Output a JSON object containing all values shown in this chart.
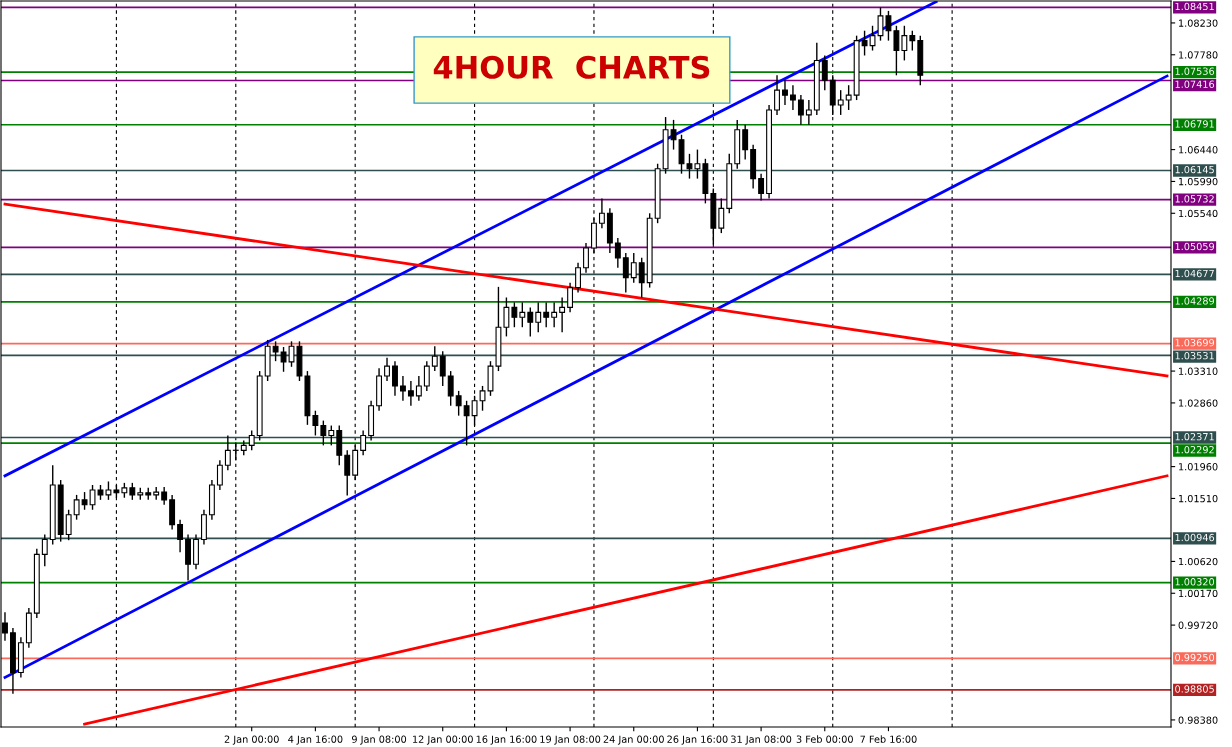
{
  "chart_data": {
    "type": "candlestick",
    "title": "4HOUR  CHARTS",
    "categories": [
      null,
      null,
      null,
      null,
      null,
      null,
      null,
      null,
      null,
      null,
      null,
      null,
      null,
      null,
      null,
      null,
      null,
      null,
      null,
      null,
      null,
      null,
      null,
      null,
      null,
      null,
      null,
      null,
      null,
      null,
      null,
      "2 Jan 00:00",
      null,
      null,
      null,
      null,
      null,
      null,
      null,
      "4 Jan 16:00",
      null,
      null,
      null,
      null,
      null,
      null,
      null,
      "9 Jan 08:00",
      null,
      null,
      null,
      null,
      null,
      null,
      null,
      "12 Jan 00:00",
      null,
      null,
      null,
      null,
      null,
      null,
      null,
      "16 Jan 16:00",
      null,
      null,
      null,
      null,
      null,
      null,
      null,
      "19 Jan 08:00",
      null,
      null,
      null,
      null,
      null,
      null,
      null,
      "24 Jan 00:00",
      null,
      null,
      null,
      null,
      null,
      null,
      null,
      "26 Jan 16:00",
      null,
      null,
      null,
      null,
      null,
      null,
      null,
      "31 Jan 08:00",
      null,
      null,
      null,
      null,
      null,
      null,
      null,
      "3 Feb 00:00",
      null,
      null,
      null,
      null,
      null,
      null,
      null,
      "7 Feb 16:00",
      null,
      null,
      null,
      null,
      null,
      null,
      null,
      null,
      null,
      null,
      null,
      null,
      null,
      null,
      null,
      null,
      null,
      null,
      null,
      null,
      null,
      null,
      null,
      null,
      null,
      null,
      null,
      null,
      null,
      null,
      null,
      null,
      null,
      null,
      null
    ],
    "ohlc": [
      [
        0.9975,
        0.999,
        0.995,
        0.9961
      ],
      [
        0.9961,
        0.9968,
        0.9875,
        0.9905
      ],
      [
        0.9905,
        0.9955,
        0.9898,
        0.9947
      ],
      [
        0.9947,
        0.9996,
        0.994,
        0.9989
      ],
      [
        0.9989,
        1.008,
        0.9982,
        1.0072
      ],
      [
        1.0072,
        1.01,
        1.0055,
        1.0093
      ],
      [
        1.0093,
        1.0198,
        1.0086,
        1.017
      ],
      [
        1.017,
        1.0177,
        1.009,
        1.01
      ],
      [
        1.01,
        1.0135,
        1.0092,
        1.0128
      ],
      [
        1.0128,
        1.0156,
        1.0121,
        1.0149
      ],
      [
        1.0149,
        1.016,
        1.0135,
        1.0142
      ],
      [
        1.0142,
        1.017,
        1.0135,
        1.0163
      ],
      [
        1.0163,
        1.017,
        1.0149,
        1.0156
      ],
      [
        1.0156,
        1.0175,
        1.0149,
        1.0163
      ],
      [
        1.0163,
        1.017,
        1.0152,
        1.0159
      ],
      [
        1.0159,
        1.0173,
        1.0152,
        1.0166
      ],
      [
        1.0166,
        1.0173,
        1.0149,
        1.0156
      ],
      [
        1.0156,
        1.0166,
        1.0149,
        1.0159
      ],
      [
        1.0159,
        1.0166,
        1.0149,
        1.0156
      ],
      [
        1.0156,
        1.0167,
        1.0149,
        1.016
      ],
      [
        1.016,
        1.0167,
        1.0142,
        1.0149
      ],
      [
        1.0149,
        1.0156,
        1.0107,
        1.0114
      ],
      [
        1.0114,
        1.0121,
        1.0075,
        1.0093
      ],
      [
        1.0093,
        1.01,
        1.0035,
        1.0058
      ],
      [
        1.0058,
        1.01,
        1.0051,
        1.0093
      ],
      [
        1.0093,
        1.0135,
        1.0086,
        1.0128
      ],
      [
        1.0128,
        1.0177,
        1.0121,
        1.017
      ],
      [
        1.017,
        1.0205,
        1.0163,
        1.0198
      ],
      [
        1.0198,
        1.024,
        1.0191,
        1.0219
      ],
      [
        1.0219,
        1.023,
        1.0205,
        1.0219
      ],
      [
        1.0219,
        1.0233,
        1.0212,
        1.0226
      ],
      [
        1.0226,
        1.0247,
        1.0219,
        1.024
      ],
      [
        1.024,
        1.0331,
        1.0233,
        1.0324
      ],
      [
        1.0324,
        1.0375,
        1.0317,
        1.0366
      ],
      [
        1.0366,
        1.0373,
        1.0345,
        1.0358
      ],
      [
        1.0358,
        1.0365,
        1.033,
        1.0344
      ],
      [
        1.0344,
        1.0373,
        1.0337,
        1.0366
      ],
      [
        1.0366,
        1.0373,
        1.0317,
        1.0324
      ],
      [
        1.0324,
        1.0331,
        1.0255,
        1.0268
      ],
      [
        1.0268,
        1.0275,
        1.024,
        1.0254
      ],
      [
        1.0254,
        1.0261,
        1.0226,
        1.024
      ],
      [
        1.024,
        1.0254,
        1.0226,
        1.0247
      ],
      [
        1.0247,
        1.0254,
        1.0198,
        1.0212
      ],
      [
        1.0212,
        1.0219,
        1.0155,
        1.0184
      ],
      [
        1.0184,
        1.0226,
        1.0177,
        1.0219
      ],
      [
        1.0219,
        1.0247,
        1.0212,
        1.024
      ],
      [
        1.024,
        1.0289,
        1.0233,
        1.0282
      ],
      [
        1.0282,
        1.0335,
        1.0275,
        1.0324
      ],
      [
        1.0324,
        1.035,
        1.0317,
        1.0338
      ],
      [
        1.0338,
        1.0345,
        1.0296,
        1.031
      ],
      [
        1.031,
        1.0324,
        1.0289,
        1.0303
      ],
      [
        1.0303,
        1.0317,
        1.0282,
        1.0296
      ],
      [
        1.0296,
        1.0324,
        1.0289,
        1.031
      ],
      [
        1.031,
        1.0345,
        1.0303,
        1.0338
      ],
      [
        1.0338,
        1.0366,
        1.0331,
        1.0352
      ],
      [
        1.0352,
        1.0359,
        1.031,
        1.0324
      ],
      [
        1.0324,
        1.0331,
        1.0282,
        1.0296
      ],
      [
        1.0296,
        1.0303,
        1.0268,
        1.0282
      ],
      [
        1.0282,
        1.0289,
        1.0226,
        1.0268
      ],
      [
        1.0268,
        1.0296,
        1.0254,
        1.0289
      ],
      [
        1.0289,
        1.031,
        1.0275,
        1.0303
      ],
      [
        1.0303,
        1.0345,
        1.0296,
        1.0338
      ],
      [
        1.0338,
        1.045,
        1.0331,
        1.0393
      ],
      [
        1.0393,
        1.0435,
        1.038,
        1.0421
      ],
      [
        1.0421,
        1.0428,
        1.0393,
        1.0407
      ],
      [
        1.0407,
        1.0428,
        1.0393,
        1.0414
      ],
      [
        1.0414,
        1.0421,
        1.038,
        1.04
      ],
      [
        1.04,
        1.0428,
        1.0386,
        1.0414
      ],
      [
        1.0414,
        1.0428,
        1.0393,
        1.0407
      ],
      [
        1.0407,
        1.0428,
        1.0393,
        1.0414
      ],
      [
        1.0414,
        1.0435,
        1.0386,
        1.0421
      ],
      [
        1.0421,
        1.0456,
        1.0414,
        1.0449
      ],
      [
        1.0449,
        1.0484,
        1.0442,
        1.0477
      ],
      [
        1.0477,
        1.0512,
        1.047,
        1.0505
      ],
      [
        1.0505,
        1.0547,
        1.0498,
        1.054
      ],
      [
        1.054,
        1.0575,
        1.0533,
        1.0554
      ],
      [
        1.0554,
        1.0561,
        1.0498,
        1.0512
      ],
      [
        1.0512,
        1.0519,
        1.0477,
        1.0491
      ],
      [
        1.0491,
        1.0498,
        1.0442,
        1.0463
      ],
      [
        1.0463,
        1.0498,
        1.0456,
        1.0484
      ],
      [
        1.0484,
        1.0491,
        1.0435,
        1.0456
      ],
      [
        1.0456,
        1.0554,
        1.0449,
        1.0547
      ],
      [
        1.0547,
        1.0624,
        1.054,
        1.0617
      ],
      [
        1.0617,
        1.069,
        1.061,
        1.0672
      ],
      [
        1.0672,
        1.0686,
        1.0644,
        1.0658
      ],
      [
        1.0658,
        1.0665,
        1.061,
        1.0624
      ],
      [
        1.0624,
        1.0638,
        1.0603,
        1.0617
      ],
      [
        1.0617,
        1.0644,
        1.0603,
        1.0624
      ],
      [
        1.0624,
        1.0631,
        1.0568,
        1.0582
      ],
      [
        1.0582,
        1.0589,
        1.051,
        1.0533
      ],
      [
        1.0533,
        1.0575,
        1.0526,
        1.0561
      ],
      [
        1.0561,
        1.0638,
        1.0554,
        1.0624
      ],
      [
        1.0624,
        1.0686,
        1.0617,
        1.0672
      ],
      [
        1.0672,
        1.0679,
        1.063,
        1.0644
      ],
      [
        1.0644,
        1.0651,
        1.0589,
        1.0603
      ],
      [
        1.0603,
        1.061,
        1.0572,
        1.0582
      ],
      [
        1.0582,
        1.0707,
        1.0575,
        1.07
      ],
      [
        1.07,
        1.0749,
        1.0693,
        1.0728
      ],
      [
        1.0728,
        1.0742,
        1.0707,
        1.0721
      ],
      [
        1.0721,
        1.0735,
        1.07,
        1.0714
      ],
      [
        1.0714,
        1.0721,
        1.0679,
        1.0693
      ],
      [
        1.0693,
        1.0714,
        1.0679,
        1.07
      ],
      [
        1.07,
        1.0795,
        1.0693,
        1.077
      ],
      [
        1.077,
        1.0777,
        1.0728,
        1.0742
      ],
      [
        1.0742,
        1.0749,
        1.0693,
        1.0707
      ],
      [
        1.0707,
        1.0728,
        1.0693,
        1.0714
      ],
      [
        1.0714,
        1.0735,
        1.07,
        1.0721
      ],
      [
        1.0721,
        1.0805,
        1.0714,
        1.0798
      ],
      [
        1.0798,
        1.0812,
        1.0777,
        1.0791
      ],
      [
        1.0791,
        1.0819,
        1.0784,
        1.0805
      ],
      [
        1.0805,
        1.0845,
        1.0798,
        1.0833
      ],
      [
        1.0833,
        1.084,
        1.0798,
        1.0812
      ],
      [
        1.0812,
        1.0819,
        1.0749,
        1.0784
      ],
      [
        1.0784,
        1.0819,
        1.077,
        1.0805
      ],
      [
        1.0805,
        1.0812,
        1.0784,
        1.0798
      ],
      [
        1.0798,
        1.0805,
        1.0735,
        1.0749
      ],
      null,
      null,
      null,
      null,
      null,
      null,
      null,
      null,
      null,
      null,
      null,
      null,
      null,
      null,
      null,
      null,
      null,
      null,
      null,
      null,
      null,
      null,
      null,
      null,
      null,
      null,
      null,
      null,
      null,
      null,
      null
    ],
    "series": [
      {
        "type": "line",
        "color": "#0000ff",
        "values": [
          1.0183,
          null,
          null,
          null,
          null,
          null,
          null,
          null,
          null,
          null,
          null,
          null,
          null,
          null,
          null,
          null,
          null,
          null,
          null,
          null,
          null,
          null,
          null,
          null,
          null,
          null,
          null,
          null,
          null,
          null,
          null,
          null,
          null,
          null,
          null,
          null,
          null,
          null,
          null,
          null,
          null,
          null,
          null,
          null,
          null,
          null,
          null,
          null,
          null,
          null,
          null,
          null,
          null,
          null,
          null,
          null,
          null,
          null,
          null,
          null,
          null,
          null,
          null,
          null,
          null,
          null,
          null,
          null,
          null,
          null,
          null,
          null,
          null,
          null,
          null,
          null,
          null,
          null,
          null,
          null,
          null,
          null,
          null,
          null,
          null,
          null,
          null,
          null,
          null,
          null,
          null,
          null,
          null,
          null,
          null,
          null,
          null,
          null,
          null,
          null,
          null,
          null,
          null,
          null,
          null,
          null,
          null,
          null,
          null,
          null,
          null,
          null,
          null,
          null,
          null,
          null,
          null,
          1.0853,
          null,
          null,
          null,
          null,
          null,
          null,
          null,
          null,
          null,
          null,
          null,
          null,
          null,
          null,
          null,
          null,
          null,
          null,
          null,
          null,
          null,
          null,
          null,
          null,
          null,
          null,
          null,
          null,
          null
        ]
      },
      {
        "type": "line",
        "color": "#0000ff",
        "values": [
          0.9898,
          null,
          null,
          null,
          null,
          null,
          null,
          null,
          null,
          null,
          null,
          null,
          null,
          null,
          null,
          null,
          null,
          null,
          null,
          null,
          null,
          null,
          null,
          null,
          null,
          null,
          null,
          null,
          null,
          null,
          null,
          null,
          null,
          null,
          null,
          null,
          null,
          null,
          null,
          null,
          null,
          null,
          null,
          null,
          null,
          null,
          null,
          null,
          null,
          null,
          null,
          null,
          null,
          null,
          null,
          null,
          null,
          null,
          null,
          null,
          null,
          null,
          null,
          null,
          null,
          null,
          null,
          null,
          null,
          null,
          null,
          null,
          null,
          null,
          null,
          null,
          null,
          null,
          null,
          null,
          null,
          null,
          null,
          null,
          null,
          null,
          null,
          null,
          null,
          null,
          null,
          null,
          null,
          null,
          null,
          null,
          null,
          null,
          null,
          null,
          null,
          null,
          null,
          null,
          null,
          null,
          null,
          null,
          null,
          null,
          null,
          null,
          null,
          null,
          null,
          null,
          null,
          null,
          null,
          null,
          null,
          null,
          null,
          null,
          null,
          null,
          null,
          null,
          null,
          null,
          null,
          null,
          null,
          null,
          null,
          null,
          null,
          null,
          null,
          null,
          null,
          null,
          null,
          null,
          null,
          null,
          1.0748
        ]
      },
      {
        "type": "line",
        "color": "#ff0000",
        "values": [
          1.0567,
          null,
          null,
          null,
          null,
          null,
          null,
          null,
          null,
          null,
          null,
          null,
          null,
          null,
          null,
          null,
          null,
          null,
          null,
          null,
          null,
          null,
          null,
          null,
          null,
          null,
          null,
          null,
          null,
          null,
          null,
          null,
          null,
          null,
          null,
          null,
          null,
          null,
          null,
          null,
          null,
          null,
          null,
          null,
          null,
          null,
          null,
          null,
          null,
          null,
          null,
          null,
          null,
          null,
          null,
          null,
          null,
          null,
          null,
          null,
          null,
          null,
          null,
          null,
          null,
          null,
          null,
          null,
          null,
          null,
          null,
          null,
          null,
          null,
          null,
          null,
          null,
          null,
          null,
          null,
          null,
          null,
          null,
          null,
          null,
          null,
          null,
          null,
          null,
          null,
          null,
          null,
          null,
          null,
          null,
          null,
          null,
          null,
          null,
          null,
          null,
          null,
          null,
          null,
          null,
          null,
          null,
          null,
          null,
          null,
          null,
          null,
          null,
          null,
          null,
          null,
          null,
          null,
          null,
          null,
          null,
          null,
          null,
          null,
          null,
          null,
          null,
          null,
          null,
          null,
          null,
          null,
          null,
          null,
          null,
          null,
          null,
          null,
          null,
          null,
          null,
          null,
          null,
          null,
          null,
          null,
          1.0324
        ]
      },
      {
        "type": "line",
        "color": "#ff0000",
        "values": [
          null,
          null,
          null,
          null,
          null,
          null,
          null,
          null,
          null,
          null,
          0.9832,
          null,
          null,
          null,
          null,
          null,
          null,
          null,
          null,
          null,
          null,
          null,
          null,
          null,
          null,
          null,
          null,
          null,
          null,
          null,
          null,
          null,
          null,
          null,
          null,
          null,
          null,
          null,
          null,
          null,
          null,
          null,
          null,
          null,
          null,
          null,
          null,
          null,
          null,
          null,
          null,
          null,
          null,
          null,
          null,
          null,
          null,
          null,
          null,
          null,
          null,
          null,
          null,
          null,
          null,
          null,
          null,
          null,
          null,
          null,
          null,
          null,
          null,
          null,
          null,
          null,
          null,
          null,
          null,
          null,
          null,
          null,
          null,
          null,
          null,
          null,
          null,
          null,
          null,
          null,
          null,
          null,
          null,
          null,
          null,
          null,
          null,
          null,
          null,
          null,
          null,
          null,
          null,
          null,
          null,
          null,
          null,
          null,
          null,
          null,
          null,
          null,
          null,
          null,
          null,
          null,
          null,
          null,
          null,
          null,
          null,
          null,
          null,
          null,
          null,
          null,
          null,
          null,
          null,
          null,
          null,
          null,
          null,
          null,
          null,
          null,
          null,
          null,
          null,
          null,
          null,
          null,
          null,
          null,
          null,
          null,
          1.0183
        ]
      }
    ],
    "ylim": [
      0.9828,
      1.0854
    ],
    "yticks": [
      {
        "value": 1.0823,
        "label": "1.08230"
      },
      {
        "value": 1.0778,
        "label": "1.07780"
      },
      {
        "value": 1.0644,
        "label": "1.06440"
      },
      {
        "value": 1.0599,
        "label": "1.05990"
      },
      {
        "value": 1.0554,
        "label": "1.05540"
      },
      {
        "value": 1.0331,
        "label": "1.03310"
      },
      {
        "value": 1.0286,
        "label": "1.02860"
      },
      {
        "value": 1.0196,
        "label": "1.01960"
      },
      {
        "value": 1.0151,
        "label": "1.01510"
      },
      {
        "value": 1.0062,
        "label": "1.00620"
      },
      {
        "value": 1.0017,
        "label": "1.00170"
      },
      {
        "value": 0.9972,
        "label": "0.99720"
      },
      {
        "value": 0.9838,
        "label": "0.98380"
      }
    ],
    "grid": false,
    "ref_lines": [
      {
        "axis": "y",
        "value": 1.08451,
        "label": "1.08451",
        "color": "#800080"
      },
      {
        "axis": "y",
        "value": 1.07536,
        "label": "1.07536",
        "color": "#008000"
      },
      {
        "axis": "y",
        "value": 1.07416,
        "label": "1.07416",
        "color": "#800080"
      },
      {
        "axis": "y",
        "value": 1.06791,
        "label": "1.06791",
        "color": "#008000"
      },
      {
        "axis": "y",
        "value": 1.06145,
        "label": "1.06145",
        "color": "#2f4f4f"
      },
      {
        "axis": "y",
        "value": 1.05732,
        "label": "1.05732",
        "color": "#800080"
      },
      {
        "axis": "y",
        "value": 1.05059,
        "label": "1.05059",
        "color": "#800080"
      },
      {
        "axis": "y",
        "value": 1.04677,
        "label": "1.04677",
        "color": "#2f4f4f"
      },
      {
        "axis": "y",
        "value": 1.04289,
        "label": "1.04289",
        "color": "#008000"
      },
      {
        "axis": "y",
        "value": 1.03699,
        "label": "1.03699",
        "color": "#fa6a5a"
      },
      {
        "axis": "y",
        "value": 1.03531,
        "label": "1.03531",
        "color": "#2f4f4f"
      },
      {
        "axis": "y",
        "value": 1.02371,
        "label": "1.02371",
        "color": "#2f4f4f"
      },
      {
        "axis": "y",
        "value": 1.02292,
        "label": "1.02292",
        "color": "#008000"
      },
      {
        "axis": "y",
        "value": 1.00946,
        "label": "1.00946",
        "color": "#2f4f4f"
      },
      {
        "axis": "y",
        "value": 1.0032,
        "label": "1.00320",
        "color": "#008000"
      },
      {
        "axis": "y",
        "value": 0.9925,
        "label": "0.99250",
        "color": "#fa6a5a"
      },
      {
        "axis": "y",
        "value": 0.98805,
        "label": "0.98805",
        "color": "#b22222"
      }
    ],
    "legend": false
  }
}
